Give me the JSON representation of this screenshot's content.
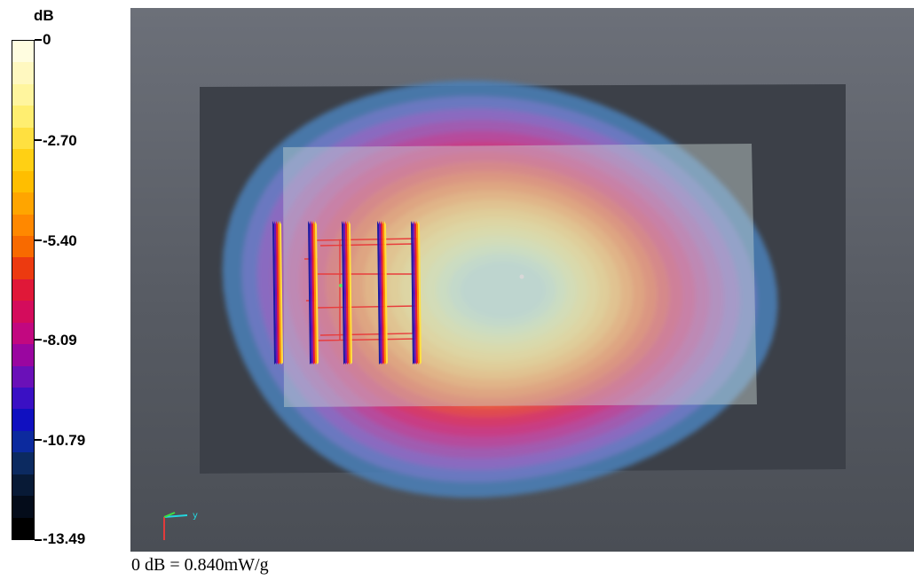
{
  "chart_data": {
    "type": "heatmap",
    "colorbar": {
      "unit": "dB",
      "range": [
        -13.49,
        0
      ],
      "ticks": [
        {
          "value": 0,
          "label": "0"
        },
        {
          "value": -2.7,
          "label": "-2.70"
        },
        {
          "value": -5.4,
          "label": "-5.40"
        },
        {
          "value": -8.09,
          "label": "-8.09"
        },
        {
          "value": -10.79,
          "label": "-10.79"
        },
        {
          "value": -13.49,
          "label": "-13.49"
        }
      ],
      "colors_top_to_bottom": [
        "#fffde0",
        "#fff8c0",
        "#fff59e",
        "#ffee70",
        "#ffe040",
        "#ffd014",
        "#ffbe00",
        "#ffa500",
        "#ff8800",
        "#f86a00",
        "#ec3a10",
        "#e01838",
        "#d40c5c",
        "#c20880",
        "#9a06a0",
        "#6a10b8",
        "#3a10c4",
        "#1010c0",
        "#0c2a9e",
        "#0c2a60",
        "#081a36",
        "#040c1a",
        "#000000"
      ]
    },
    "caption": "0 dB = 0.840mW/g"
  },
  "view": {
    "axis_triad": {
      "y_label": "y"
    },
    "contour_colors_outer_to_inner": [
      "#4a80b8",
      "#6a78c0",
      "#8a6ac0",
      "#a05cb0",
      "#b64c9c",
      "#c83c84",
      "#d43a6a",
      "#e04c50",
      "#ea6440",
      "#f07e40",
      "#f49a4c",
      "#f4b45c",
      "#f2c86c",
      "#eed67e",
      "#e6de8e",
      "#dce2a2",
      "#cee2b4",
      "#c0dcc4",
      "#b6d6cc"
    ]
  }
}
